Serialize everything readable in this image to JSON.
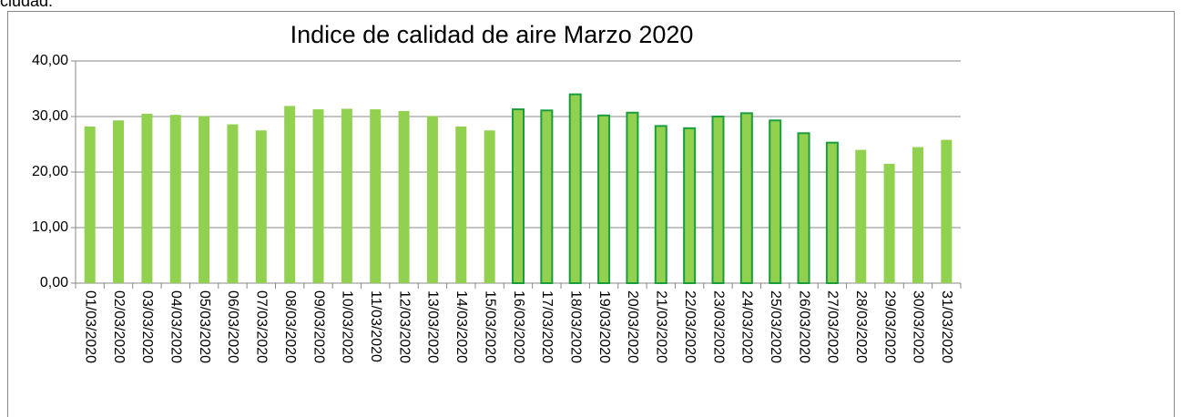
{
  "intro_text": "ciudad.",
  "chart_data": {
    "type": "bar",
    "title": "Indice de calidad de aire Marzo 2020",
    "categories": [
      "01/03/2020",
      "02/03/2020",
      "03/03/2020",
      "04/03/2020",
      "05/03/2020",
      "06/03/2020",
      "07/03/2020",
      "08/03/2020",
      "09/03/2020",
      "10/03/2020",
      "11/03/2020",
      "12/03/2020",
      "13/03/2020",
      "14/03/2020",
      "15/03/2020",
      "16/03/2020",
      "17/03/2020",
      "18/03/2020",
      "19/03/2020",
      "20/03/2020",
      "21/03/2020",
      "22/03/2020",
      "23/03/2020",
      "24/03/2020",
      "25/03/2020",
      "26/03/2020",
      "27/03/2020",
      "28/03/2020",
      "29/03/2020",
      "30/03/2020",
      "31/03/2020"
    ],
    "values": [
      28.2,
      29.3,
      30.5,
      30.3,
      30.1,
      28.6,
      27.5,
      31.9,
      31.3,
      31.4,
      31.3,
      31.0,
      30.1,
      28.2,
      27.5,
      31.3,
      31.1,
      34.0,
      30.2,
      30.7,
      28.3,
      27.9,
      30.0,
      30.6,
      29.3,
      27.0,
      25.3,
      24.0,
      21.5,
      24.5,
      25.8
    ],
    "color": "#92d050",
    "edgecolors": [
      null,
      null,
      null,
      null,
      null,
      null,
      null,
      null,
      null,
      null,
      null,
      null,
      null,
      null,
      null,
      "#1a9e3c",
      "#1a9e3c",
      "#1a9e3c",
      "#1a9e3c",
      "#1a9e3c",
      "#1a9e3c",
      "#1a9e3c",
      "#1a9e3c",
      "#1a9e3c",
      "#1a9e3c",
      "#1a9e3c",
      "#1a9e3c",
      null,
      null,
      null,
      null
    ],
    "ylim": [
      0,
      40
    ],
    "yticks": [
      {
        "value": 0,
        "label": "0,00"
      },
      {
        "value": 10,
        "label": "10,00"
      },
      {
        "value": 20,
        "label": "20,00"
      },
      {
        "value": 30,
        "label": "30,00"
      },
      {
        "value": 40,
        "label": "40,00"
      }
    ],
    "grid": true
  }
}
